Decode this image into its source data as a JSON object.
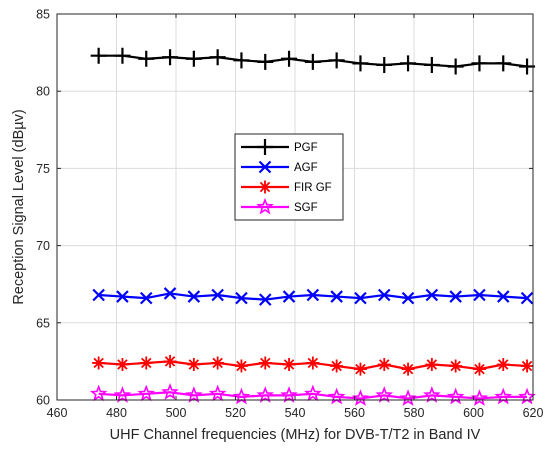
{
  "chart_data": {
    "type": "line",
    "title": "",
    "xlabel": "UHF Channel frequencies (MHz)  for DVB-T/T2 in Band IV",
    "ylabel": "Reception Signal Level (dBµv)",
    "xlim": [
      460,
      620
    ],
    "ylim": [
      60,
      85
    ],
    "xticks": [
      "460",
      "480",
      "500",
      "520",
      "540",
      "560",
      "580",
      "600",
      "620"
    ],
    "yticks": [
      "60",
      "65",
      "70",
      "75",
      "80",
      "85"
    ],
    "grid": true,
    "legend_position": "center",
    "x": [
      474,
      482,
      490,
      498,
      506,
      514,
      522,
      530,
      538,
      546,
      554,
      562,
      570,
      578,
      586,
      594,
      602,
      610,
      618
    ],
    "series": [
      {
        "name": "PGF",
        "color": "#000000",
        "marker": "plus",
        "values": [
          82.3,
          82.3,
          82.1,
          82.2,
          82.1,
          82.2,
          82.0,
          81.9,
          82.1,
          81.9,
          82.0,
          81.8,
          81.7,
          81.8,
          81.7,
          81.6,
          81.8,
          81.8,
          81.6
        ]
      },
      {
        "name": "AGF",
        "color": "#0000ff",
        "marker": "x",
        "values": [
          66.8,
          66.7,
          66.6,
          66.9,
          66.7,
          66.8,
          66.6,
          66.5,
          66.7,
          66.8,
          66.7,
          66.6,
          66.8,
          66.6,
          66.8,
          66.7,
          66.8,
          66.7,
          66.6
        ]
      },
      {
        "name": "FIR GF",
        "color": "#ff0000",
        "marker": "asterisk",
        "values": [
          62.4,
          62.3,
          62.4,
          62.5,
          62.3,
          62.4,
          62.2,
          62.4,
          62.3,
          62.4,
          62.2,
          62.0,
          62.3,
          62.0,
          62.3,
          62.2,
          62.0,
          62.3,
          62.2
        ]
      },
      {
        "name": "SGF",
        "color": "#ff00ff",
        "marker": "star",
        "values": [
          60.4,
          60.3,
          60.4,
          60.5,
          60.3,
          60.4,
          60.2,
          60.3,
          60.3,
          60.4,
          60.2,
          60.1,
          60.3,
          60.1,
          60.3,
          60.2,
          60.1,
          60.2,
          60.2
        ]
      }
    ]
  }
}
